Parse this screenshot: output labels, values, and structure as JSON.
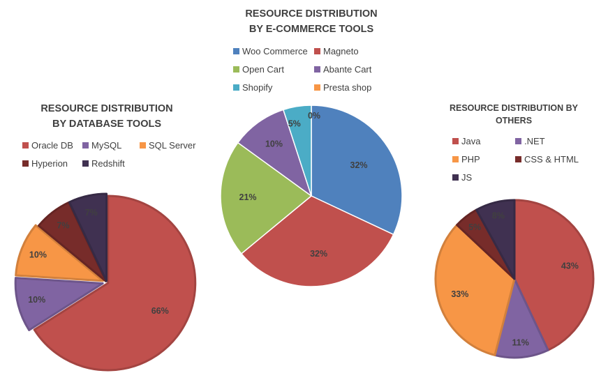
{
  "chart_data": [
    {
      "type": "pie",
      "title": "RESOURCE DISTRIBUTION BY DATABASE TOOLS",
      "legend_position": "top",
      "slices": [
        {
          "label": "Oracle DB",
          "value": 66,
          "data_label": "66%",
          "color": "#c0504d"
        },
        {
          "label": "MySQL",
          "value": 10,
          "data_label": "10%",
          "color": "#8064a2"
        },
        {
          "label": "SQL Server",
          "value": 10,
          "data_label": "10%",
          "color": "#f79646"
        },
        {
          "label": "Hyperion",
          "value": 7,
          "data_label": "7%",
          "color": "#772c2a"
        },
        {
          "label": "Redshift",
          "value": 7,
          "data_label": "7%",
          "color": "#403151"
        }
      ]
    },
    {
      "type": "pie",
      "title": "RESOURCE DISTRIBUTION BY E-COMMERCE TOOLS",
      "legend_position": "top",
      "slices": [
        {
          "label": "Woo Commerce",
          "value": 32,
          "data_label": "32%",
          "color": "#4f81bd"
        },
        {
          "label": "Magneto",
          "value": 32,
          "data_label": "32%",
          "color": "#c0504d"
        },
        {
          "label": "Open Cart",
          "value": 21,
          "data_label": "21%",
          "color": "#9bbb59"
        },
        {
          "label": "Abante Cart",
          "value": 10,
          "data_label": "10%",
          "color": "#8064a2"
        },
        {
          "label": "Shopify",
          "value": 5,
          "data_label": "5%",
          "color": "#4bacc6"
        },
        {
          "label": "Presta shop",
          "value": 0,
          "data_label": "0%",
          "color": "#f79646"
        }
      ]
    },
    {
      "type": "pie",
      "title": "RESOURCE DISTRIBUTION BY OTHERS",
      "legend_position": "top",
      "slices": [
        {
          "label": "Java",
          "value": 43,
          "data_label": "43%",
          "color": "#c0504d"
        },
        {
          "label": ".NET",
          "value": 11,
          "data_label": "11%",
          "color": "#8064a2"
        },
        {
          "label": "PHP",
          "value": 33,
          "data_label": "33%",
          "color": "#f79646"
        },
        {
          "label": "CSS & HTML",
          "value": 5,
          "data_label": "5%",
          "color": "#772c2a"
        },
        {
          "label": "JS",
          "value": 8,
          "data_label": "8%",
          "color": "#403151"
        }
      ]
    }
  ]
}
